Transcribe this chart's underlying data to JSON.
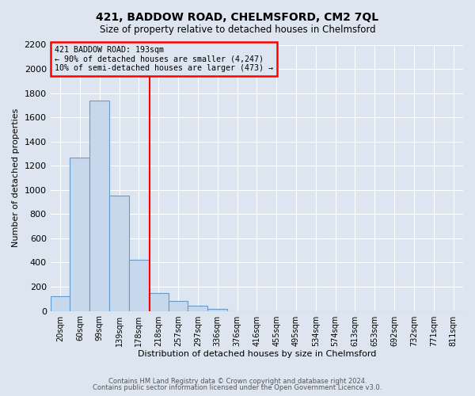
{
  "title": "421, BADDOW ROAD, CHELMSFORD, CM2 7QL",
  "subtitle": "Size of property relative to detached houses in Chelmsford",
  "xlabel": "Distribution of detached houses by size in Chelmsford",
  "ylabel": "Number of detached properties",
  "footer_lines": [
    "Contains HM Land Registry data © Crown copyright and database right 2024.",
    "Contains public sector information licensed under the Open Government Licence v3.0."
  ],
  "bin_labels": [
    "20sqm",
    "60sqm",
    "99sqm",
    "139sqm",
    "178sqm",
    "218sqm",
    "257sqm",
    "297sqm",
    "336sqm",
    "376sqm",
    "416sqm",
    "455sqm",
    "495sqm",
    "534sqm",
    "574sqm",
    "613sqm",
    "653sqm",
    "692sqm",
    "732sqm",
    "771sqm",
    "811sqm"
  ],
  "bar_values": [
    120,
    1270,
    1740,
    950,
    420,
    150,
    80,
    40,
    20,
    0,
    0,
    0,
    0,
    0,
    0,
    0,
    0,
    0,
    0,
    0,
    0
  ],
  "bar_color": "#c8d8ec",
  "bar_edge_color": "#6699cc",
  "vline_x_index": 4.55,
  "vline_color": "red",
  "ylim": [
    0,
    2200
  ],
  "yticks": [
    0,
    200,
    400,
    600,
    800,
    1000,
    1200,
    1400,
    1600,
    1800,
    2000,
    2200
  ],
  "annotation_title": "421 BADDOW ROAD: 193sqm",
  "annotation_line1": "← 90% of detached houses are smaller (4,247)",
  "annotation_line2": "10% of semi-detached houses are larger (473) →",
  "annotation_box_color": "red",
  "fig_bg_color": "#dde6f0",
  "plot_bg_color": "#dde6f0",
  "grid_color": "white",
  "title_fontsize": 10,
  "subtitle_fontsize": 8.5,
  "ylabel_fontsize": 8,
  "xlabel_fontsize": 8,
  "tick_fontsize": 8,
  "xtick_fontsize": 7
}
